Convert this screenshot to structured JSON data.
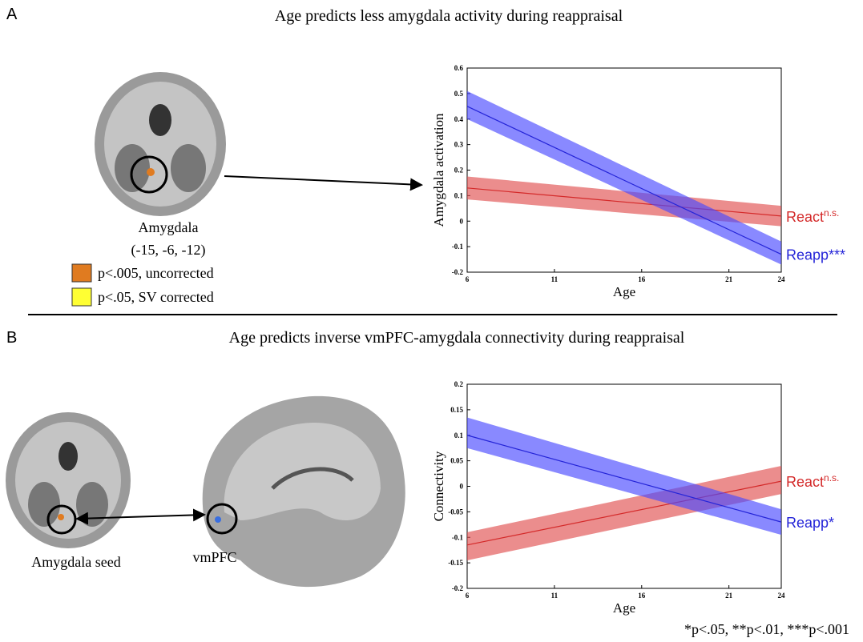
{
  "panel_a": {
    "letter": "A",
    "title": "Age predicts less amygdala activity during reappraisal",
    "region": "Amygdala",
    "coords": "(-15, -6, -12)",
    "legend": [
      {
        "color": "#e07b20",
        "label": "p<.005, uncorrected"
      },
      {
        "color": "#ffff33",
        "label": "p<.05, SV corrected"
      }
    ]
  },
  "panel_b": {
    "letter": "B",
    "title": "Age predicts inverse vmPFC-amygdala connectivity during reappraisal",
    "seed_label": "Amygdala seed",
    "target_label": "vmPFC"
  },
  "footnote": "*p<.05, **p<.01, ***p<.001",
  "chart_data": [
    {
      "type": "line",
      "xlabel": "Age",
      "ylabel": "Amygdala activation",
      "x": [
        6,
        24
      ],
      "xlim": [
        6,
        24
      ],
      "xticks": [
        6,
        11,
        16,
        21,
        24
      ],
      "ylim": [
        -0.2,
        0.6
      ],
      "yticks": [
        -0.2,
        -0.1,
        0,
        0.1,
        0.2,
        0.3,
        0.4,
        0.5,
        0.6
      ],
      "series": [
        {
          "name": "React",
          "significance": "n.s.",
          "color": "#d42a2a",
          "band_color": "#e05050",
          "values": [
            0.13,
            0.02
          ],
          "lower": [
            0.085,
            -0.02
          ],
          "upper": [
            0.175,
            0.06
          ]
        },
        {
          "name": "Reapp***",
          "color": "#2525d8",
          "band_color": "#4a4aff",
          "values": [
            0.45,
            -0.13
          ],
          "lower": [
            0.4,
            -0.17
          ],
          "upper": [
            0.51,
            -0.08
          ]
        }
      ]
    },
    {
      "type": "line",
      "xlabel": "Age",
      "ylabel": "Connectivity",
      "x": [
        6,
        24
      ],
      "xlim": [
        6,
        24
      ],
      "xticks": [
        6,
        11,
        16,
        21,
        24
      ],
      "ylim": [
        -0.2,
        0.2
      ],
      "yticks": [
        -0.2,
        -0.15,
        -0.1,
        -0.05,
        0,
        0.05,
        0.1,
        0.15,
        0.2
      ],
      "series": [
        {
          "name": "React",
          "significance": "n.s.",
          "color": "#d42a2a",
          "band_color": "#e05050",
          "values": [
            -0.115,
            0.01
          ],
          "lower": [
            -0.145,
            -0.015
          ],
          "upper": [
            -0.09,
            0.04
          ]
        },
        {
          "name": "Reapp*",
          "color": "#2525d8",
          "band_color": "#4a4aff",
          "values": [
            0.1,
            -0.07
          ],
          "lower": [
            0.075,
            -0.095
          ],
          "upper": [
            0.135,
            -0.045
          ]
        }
      ]
    }
  ]
}
